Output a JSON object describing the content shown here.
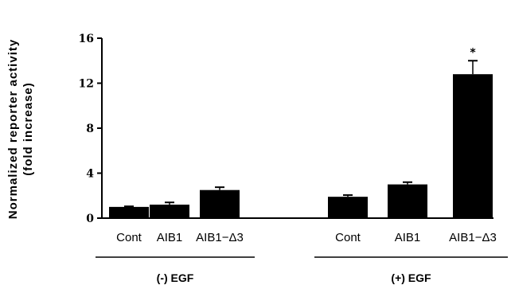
{
  "chart_data": {
    "type": "bar",
    "ylabel_line1": "Normalized  reporter  activity",
    "ylabel_line2": "(fold increase)",
    "ylim": [
      0,
      16
    ],
    "yticks": [
      0,
      4,
      8,
      12,
      16
    ],
    "categories": [
      "Cont",
      "AIB1",
      "AIB1−Δ3",
      "Cont",
      "AIB1",
      "AIB1−Δ3"
    ],
    "values": [
      1.0,
      1.2,
      2.5,
      1.9,
      3.0,
      12.8
    ],
    "errors": [
      0.05,
      0.2,
      0.25,
      0.15,
      0.2,
      1.2
    ],
    "groups": [
      {
        "label": "(-)  EGF",
        "members": [
          0,
          1,
          2
        ]
      },
      {
        "label": "(+)  EGF",
        "members": [
          3,
          4,
          5
        ]
      }
    ],
    "annotations": [
      {
        "category_index": 5,
        "text": "*"
      }
    ],
    "colors": {
      "bar": "#000000",
      "axis": "#000000"
    },
    "grid": false,
    "legend": "none"
  }
}
